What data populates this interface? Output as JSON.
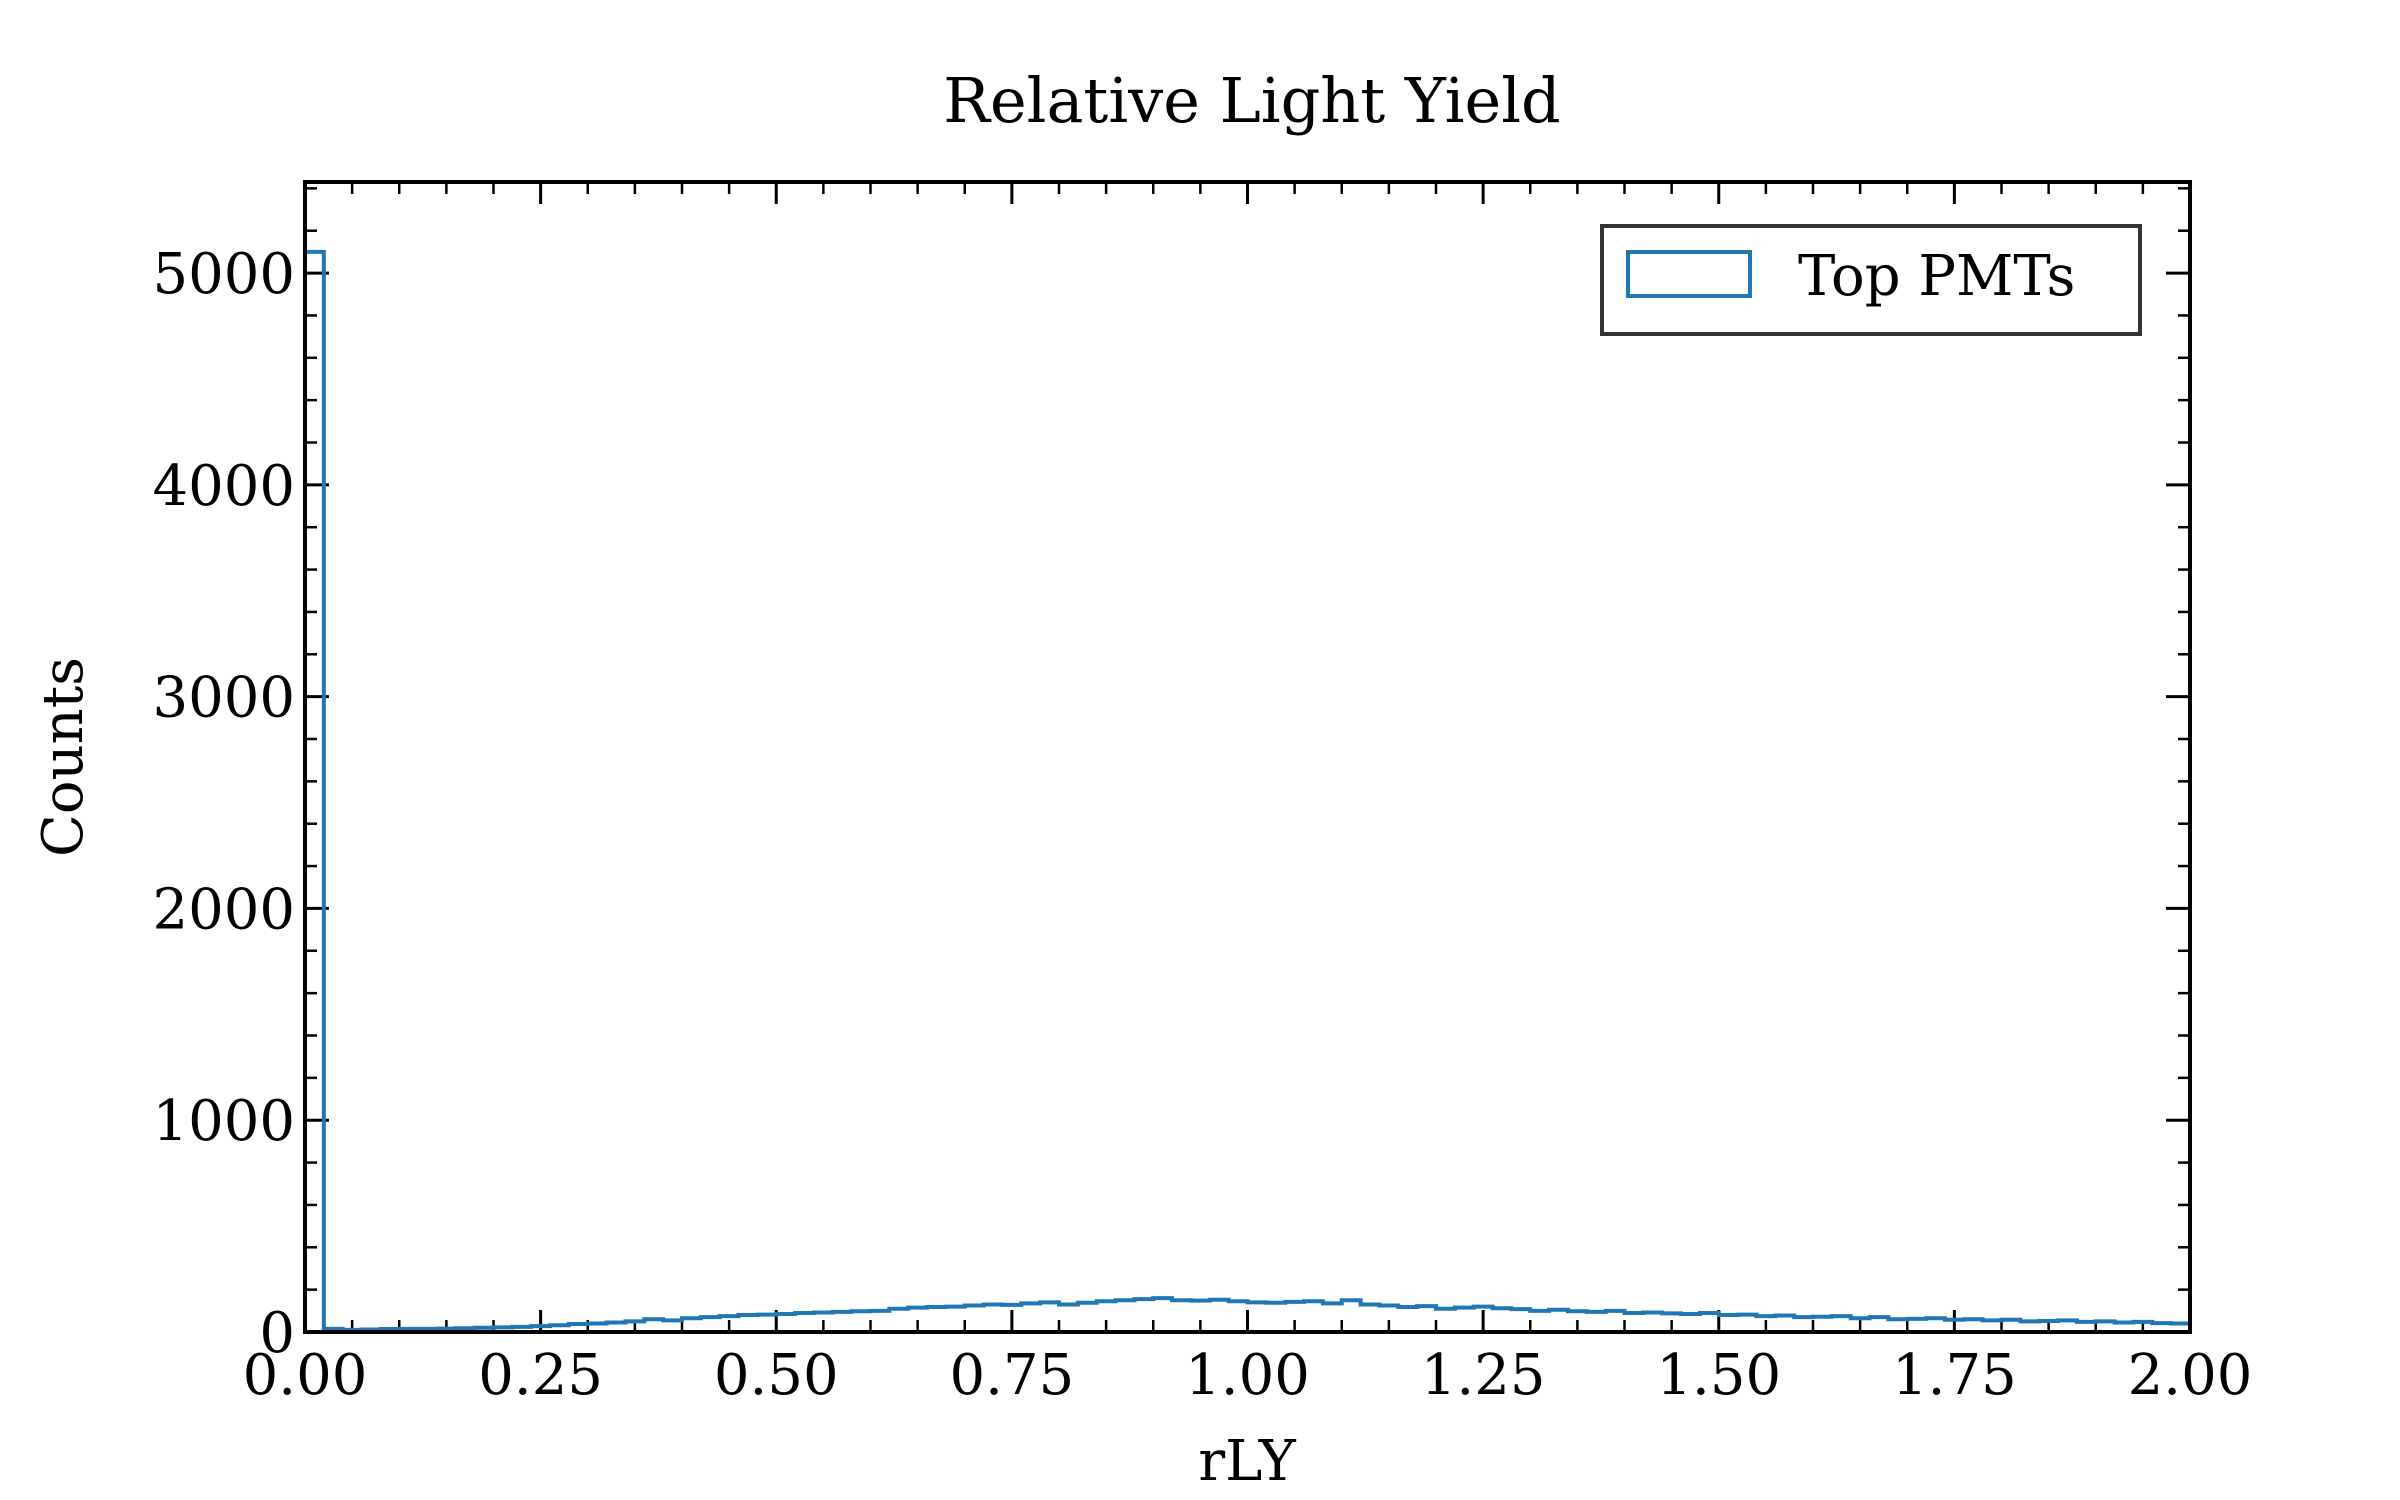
{
  "chart_data": {
    "type": "bar",
    "style": "step-histogram",
    "title": "Relative Light Yield",
    "xlabel": "rLY",
    "ylabel": "Counts",
    "xlim": [
      0.0,
      2.0
    ],
    "ylim": [
      0,
      5430
    ],
    "xticks": [
      "0.00",
      "0.25",
      "0.50",
      "0.75",
      "1.00",
      "1.25",
      "1.50",
      "1.75",
      "2.00"
    ],
    "yticks": [
      "0",
      "1000",
      "2000",
      "3000",
      "4000",
      "5000"
    ],
    "grid": false,
    "legend_position": "top-right",
    "bin_width": 0.02,
    "series": [
      {
        "name": "Top PMTs",
        "color": "#1f77b4",
        "bin_edges_start": 0.0,
        "values": [
          5100,
          15,
          10,
          12,
          14,
          15,
          15,
          16,
          18,
          20,
          22,
          24,
          28,
          32,
          38,
          40,
          45,
          50,
          60,
          55,
          65,
          70,
          75,
          80,
          82,
          85,
          90,
          92,
          95,
          98,
          100,
          110,
          115,
          118,
          120,
          125,
          130,
          128,
          135,
          140,
          130,
          138,
          145,
          150,
          155,
          160,
          150,
          148,
          152,
          145,
          140,
          138,
          142,
          145,
          135,
          150,
          130,
          125,
          118,
          122,
          110,
          115,
          120,
          112,
          108,
          100,
          105,
          98,
          95,
          100,
          90,
          92,
          88,
          85,
          90,
          80,
          82,
          75,
          78,
          70,
          72,
          75,
          65,
          70,
          60,
          62,
          65,
          58,
          60,
          55,
          58,
          50,
          52,
          55,
          48,
          50,
          45,
          48,
          42,
          40
        ]
      }
    ]
  }
}
